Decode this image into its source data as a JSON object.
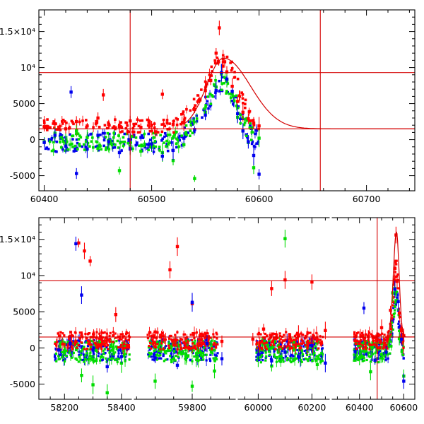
{
  "chart_data": [
    {
      "type": "scatter",
      "panel": "top",
      "xlim": [
        60395,
        60745
      ],
      "ylim": [
        -7100,
        18000
      ],
      "x_ticks": [
        {
          "value": 60400,
          "label": "60400"
        },
        {
          "value": 60500,
          "label": "60500"
        },
        {
          "value": 60600,
          "label": "60600"
        },
        {
          "value": 60700,
          "label": "60700"
        }
      ],
      "y_ticks": [
        {
          "value": 15000,
          "label": "1.5×10⁴"
        },
        {
          "value": 10000,
          "label": "10⁴"
        },
        {
          "value": 5000,
          "label": "5000"
        },
        {
          "value": 0,
          "label": "0"
        },
        {
          "value": -5000,
          "label": "-5000"
        }
      ],
      "hlines": [
        9300,
        1500
      ],
      "vlines": [
        60480,
        60657
      ],
      "model_curve": {
        "peak_x": 60567,
        "peak_y": 11300,
        "baseline": 1500,
        "rise_width": 16,
        "decay_width": 25,
        "x_range": [
          60530,
          60745
        ]
      },
      "series": [
        {
          "color": "#ff0000",
          "points": [
            [
              60400,
              1800
            ],
            [
              60410,
              2200
            ],
            [
              60420,
              1500
            ],
            [
              60430,
              2500
            ],
            [
              60440,
              1900
            ],
            [
              60450,
              3000
            ],
            [
              60455,
              6200
            ],
            [
              60460,
              2100
            ],
            [
              60470,
              1800
            ],
            [
              60480,
              2600
            ],
            [
              60490,
              1700
            ],
            [
              60500,
              2000
            ],
            [
              60510,
              6300
            ],
            [
              60520,
              2100
            ],
            [
              60530,
              2400
            ],
            [
              60540,
              4200
            ],
            [
              60545,
              5500
            ],
            [
              60550,
              6800
            ],
            [
              60555,
              8200
            ],
            [
              60560,
              12000
            ],
            [
              60563,
              15500
            ],
            [
              60566,
              10200
            ],
            [
              60568,
              10800
            ],
            [
              60570,
              9400
            ],
            [
              60575,
              7400
            ],
            [
              60580,
              5300
            ],
            [
              60585,
              3800
            ],
            [
              60590,
              2900
            ],
            [
              60595,
              2300
            ],
            [
              60600,
              1900
            ]
          ]
        },
        {
          "color": "#00dd00",
          "points": [
            [
              60400,
              -300
            ],
            [
              60410,
              900
            ],
            [
              60420,
              -500
            ],
            [
              60430,
              1200
            ],
            [
              60440,
              300
            ],
            [
              60450,
              -1200
            ],
            [
              60460,
              -500
            ],
            [
              60470,
              -4300
            ],
            [
              60480,
              -900
            ],
            [
              60490,
              -1600
            ],
            [
              60500,
              -700
            ],
            [
              60510,
              -1800
            ],
            [
              60520,
              -2900
            ],
            [
              60530,
              -700
            ],
            [
              60540,
              -5400
            ],
            [
              60550,
              3800
            ],
            [
              60560,
              7300
            ],
            [
              60565,
              9100
            ],
            [
              60570,
              8200
            ],
            [
              60575,
              6300
            ],
            [
              60580,
              3100
            ],
            [
              60585,
              1200
            ],
            [
              60590,
              -400
            ],
            [
              60595,
              -3900
            ],
            [
              60600,
              200
            ]
          ]
        },
        {
          "color": "#0000ee",
          "points": [
            [
              60400,
              -400
            ],
            [
              60410,
              600
            ],
            [
              60420,
              -900
            ],
            [
              60425,
              6600
            ],
            [
              60430,
              -4700
            ],
            [
              60440,
              -1300
            ],
            [
              60450,
              600
            ],
            [
              60460,
              -300
            ],
            [
              60470,
              -1800
            ],
            [
              60480,
              -1200
            ],
            [
              60490,
              300
            ],
            [
              60500,
              -600
            ],
            [
              60510,
              -2300
            ],
            [
              60520,
              -1500
            ],
            [
              60530,
              200
            ],
            [
              60540,
              1400
            ],
            [
              60550,
              3400
            ],
            [
              60560,
              6800
            ],
            [
              60565,
              9300
            ],
            [
              60570,
              8400
            ],
            [
              60575,
              6700
            ],
            [
              60580,
              3600
            ],
            [
              60585,
              1200
            ],
            [
              60590,
              -300
            ],
            [
              60595,
              -2200
            ],
            [
              60600,
              -4800
            ]
          ]
        }
      ]
    },
    {
      "type": "scatter",
      "panel": "bottom",
      "segments": [
        {
          "xlim": [
            58110,
            58440
          ],
          "x_ticks": [
            {
              "value": 58200,
              "label": "58200"
            },
            {
              "value": 58400,
              "label": "58400"
            }
          ]
        },
        {
          "xlim": [
            59640,
            59920
          ],
          "x_ticks": [
            {
              "value": 59800,
              "label": "59800"
            }
          ]
        },
        {
          "xlim": [
            59920,
            60270
          ],
          "x_ticks": [
            {
              "value": 60000,
              "label": "60000"
            },
            {
              "value": 60200,
              "label": "60200"
            }
          ]
        },
        {
          "xlim": [
            60270,
            60650
          ],
          "x_ticks": [
            {
              "value": 60400,
              "label": "60400"
            },
            {
              "value": 60600,
              "label": "60600"
            }
          ]
        }
      ],
      "ylim": [
        -7100,
        18000
      ],
      "y_ticks": [
        {
          "value": 15000,
          "label": "1.5×10⁴"
        },
        {
          "value": 10000,
          "label": "10⁴"
        },
        {
          "value": 5000,
          "label": "5000"
        },
        {
          "value": 0,
          "label": "0"
        },
        {
          "value": -5000,
          "label": "-5000"
        }
      ],
      "hlines": [
        9300,
        1500
      ],
      "vlines": [
        60480
      ],
      "series": [
        {
          "color": "#ff0000",
          "points": [
            [
              58180,
              -200
            ],
            [
              58220,
              600
            ],
            [
              58250,
              14500
            ],
            [
              58270,
              13400
            ],
            [
              58290,
              12000
            ],
            [
              58330,
              1200
            ],
            [
              58380,
              4600
            ],
            [
              58420,
              300
            ],
            [
              59700,
              2200
            ],
            [
              59740,
              10800
            ],
            [
              59760,
              14000
            ],
            [
              59800,
              6100
            ],
            [
              59840,
              1500
            ],
            [
              59880,
              900
            ],
            [
              59980,
              1200
            ],
            [
              60020,
              2600
            ],
            [
              60050,
              8200
            ],
            [
              60100,
              9400
            ],
            [
              60150,
              1800
            ],
            [
              60200,
              9100
            ],
            [
              60250,
              2400
            ],
            [
              60380,
              1000
            ],
            [
              60440,
              1600
            ],
            [
              60500,
              2800
            ],
            [
              60540,
              5200
            ],
            [
              60560,
              11000
            ],
            [
              60565,
              15600
            ],
            [
              60570,
              9200
            ],
            [
              60580,
              4800
            ],
            [
              60590,
              2400
            ],
            [
              60600,
              1700
            ]
          ]
        },
        {
          "color": "#00dd00",
          "points": [
            [
              58200,
              -400
            ],
            [
              58260,
              -3800
            ],
            [
              58300,
              -5100
            ],
            [
              58350,
              -6200
            ],
            [
              58400,
              -2100
            ],
            [
              59700,
              -4600
            ],
            [
              59750,
              -1500
            ],
            [
              59800,
              -5300
            ],
            [
              59860,
              -3200
            ],
            [
              60000,
              -1400
            ],
            [
              60050,
              -2500
            ],
            [
              60100,
              15100
            ],
            [
              60150,
              -1100
            ],
            [
              60220,
              -2300
            ],
            [
              60400,
              -1300
            ],
            [
              60450,
              -3300
            ],
            [
              60500,
              -900
            ],
            [
              60550,
              7600
            ],
            [
              60560,
              8200
            ],
            [
              60580,
              1300
            ],
            [
              60600,
              -3900
            ]
          ]
        },
        {
          "color": "#0000ee",
          "points": [
            [
              58180,
              -300
            ],
            [
              58220,
              600
            ],
            [
              58240,
              14400
            ],
            [
              58260,
              7300
            ],
            [
              58300,
              -300
            ],
            [
              58350,
              -2600
            ],
            [
              58400,
              -1200
            ],
            [
              59700,
              -1400
            ],
            [
              59760,
              -2400
            ],
            [
              59800,
              6300
            ],
            [
              59840,
              600
            ],
            [
              59880,
              -1500
            ],
            [
              60000,
              -900
            ],
            [
              60050,
              -1800
            ],
            [
              60100,
              -600
            ],
            [
              60150,
              -1200
            ],
            [
              60200,
              300
            ],
            [
              60250,
              -2100
            ],
            [
              60380,
              -500
            ],
            [
              60420,
              5500
            ],
            [
              60470,
              -1700
            ],
            [
              60520,
              -600
            ],
            [
              60560,
              8100
            ],
            [
              60575,
              6400
            ],
            [
              60590,
              1200
            ],
            [
              60600,
              -4600
            ]
          ]
        }
      ]
    }
  ]
}
